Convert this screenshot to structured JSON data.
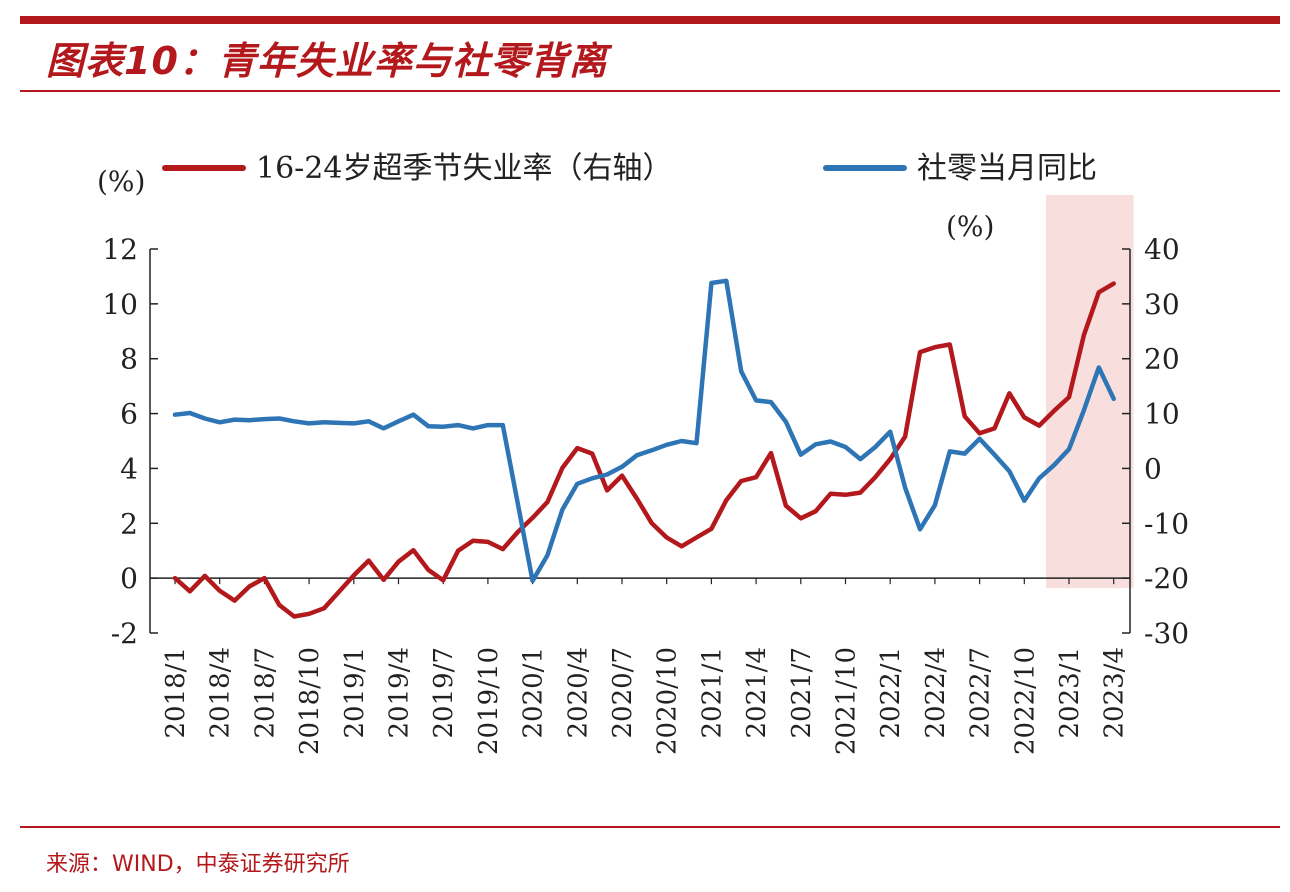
{
  "header": {
    "title": "图表10：青年失业率与社零背离"
  },
  "footer": {
    "source": "来源：WIND，中泰证券研究所"
  },
  "chart_data": {
    "type": "line",
    "left_unit": "(%)",
    "right_unit": "(%)",
    "x": [
      "2018/1",
      "2018/2",
      "2018/3",
      "2018/4",
      "2018/5",
      "2018/6",
      "2018/7",
      "2018/8",
      "2018/9",
      "2018/10",
      "2018/11",
      "2018/12",
      "2019/1",
      "2019/2",
      "2019/3",
      "2019/4",
      "2019/5",
      "2019/6",
      "2019/7",
      "2019/8",
      "2019/9",
      "2019/10",
      "2019/11",
      "2019/12",
      "2020/1",
      "2020/2",
      "2020/3",
      "2020/4",
      "2020/5",
      "2020/6",
      "2020/7",
      "2020/8",
      "2020/9",
      "2020/10",
      "2020/11",
      "2020/12",
      "2021/1",
      "2021/2",
      "2021/3",
      "2021/4",
      "2021/5",
      "2021/6",
      "2021/7",
      "2021/8",
      "2021/9",
      "2021/10",
      "2021/11",
      "2021/12",
      "2022/1",
      "2022/2",
      "2022/3",
      "2022/4",
      "2022/5",
      "2022/6",
      "2022/7",
      "2022/8",
      "2022/9",
      "2022/10",
      "2022/11",
      "2022/12",
      "2023/1",
      "2023/2",
      "2023/3",
      "2023/4",
      "2023/5"
    ],
    "tick_labels": [
      "2018/1",
      "2018/4",
      "2018/7",
      "2018/10",
      "2019/1",
      "2019/4",
      "2019/7",
      "2019/10",
      "2020/1",
      "2020/4",
      "2020/7",
      "2020/10",
      "2021/1",
      "2021/4",
      "2021/7",
      "2021/10",
      "2022/1",
      "2022/4",
      "2022/7",
      "2022/10",
      "2023/1",
      "2023/4"
    ],
    "y_left": {
      "min": -2,
      "max": 12,
      "ticks": [
        -2,
        0,
        2,
        4,
        6,
        8,
        10,
        12
      ]
    },
    "y_right": {
      "min": -30,
      "max": 40,
      "ticks": [
        -30,
        -20,
        -10,
        0,
        10,
        20,
        30,
        40
      ]
    },
    "highlight": {
      "from": "2023/1",
      "to": "2023/5",
      "color": "#f9dede"
    },
    "series": [
      {
        "name": "16-24岁超季节失业率（右轴）",
        "axis": "right",
        "color": "#b3191c",
        "values": [
          -20.0,
          -22.4,
          -19.6,
          -22.3,
          -24.1,
          -21.5,
          -20.0,
          -24.9,
          -27.0,
          -26.5,
          -25.5,
          -22.5,
          -19.5,
          -16.8,
          -20.3,
          -17.0,
          -14.9,
          -18.5,
          -20.4,
          -15.0,
          -13.2,
          -13.4,
          -14.7,
          -11.6,
          -9.0,
          -6.1,
          0.1,
          3.7,
          2.7,
          -4.0,
          -1.3,
          -5.5,
          -10.0,
          -12.6,
          -14.2,
          -12.6,
          -11.0,
          -5.8,
          -2.3,
          -1.6,
          2.8,
          -6.8,
          -9.1,
          -7.8,
          -4.6,
          -4.8,
          -4.4,
          -1.6,
          1.7,
          5.8,
          21.2,
          22.1,
          22.6,
          9.5,
          6.4,
          7.3,
          13.7,
          9.3,
          7.8,
          10.5,
          13.0,
          24.3,
          32.1,
          33.7,
          null
        ]
      },
      {
        "name": "社零当月同比",
        "axis": "right",
        "color": "#2e75b6",
        "values": [
          9.8,
          10.1,
          9.1,
          8.4,
          8.9,
          8.8,
          9.0,
          9.1,
          8.6,
          8.2,
          8.4,
          8.3,
          8.2,
          8.6,
          7.3,
          8.6,
          9.8,
          7.7,
          7.6,
          7.9,
          7.3,
          7.9,
          7.9,
          null,
          -20.5,
          -15.8,
          -7.5,
          -2.8,
          -1.8,
          -1.1,
          0.3,
          2.4,
          3.3,
          4.3,
          5.0,
          4.6,
          33.8,
          34.2,
          17.7,
          12.4,
          12.1,
          8.5,
          2.5,
          4.4,
          4.9,
          3.9,
          1.7,
          3.9,
          6.7,
          -3.5,
          -11.1,
          -6.7,
          3.1,
          2.7,
          5.4,
          2.5,
          -0.5,
          -5.9,
          -1.8,
          0.6,
          3.5,
          10.6,
          18.4,
          12.7,
          null
        ]
      }
    ]
  }
}
